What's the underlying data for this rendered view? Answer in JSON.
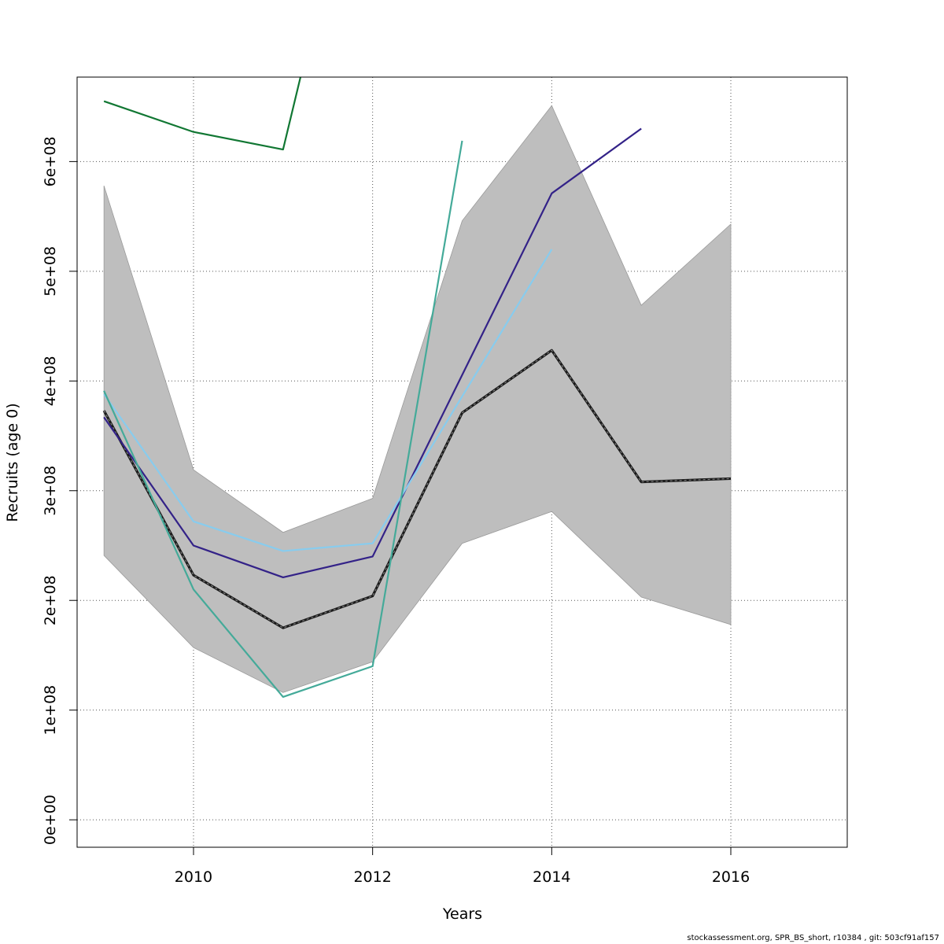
{
  "chart_data": {
    "type": "line",
    "title": "",
    "xlabel": "Years",
    "ylabel": "Recruits (age 0)",
    "xlim": [
      2008.7,
      2017.3
    ],
    "ylim": [
      -25000000,
      677000000
    ],
    "x_ticks": [
      2010,
      2012,
      2014,
      2016
    ],
    "x_tick_labels": [
      "2010",
      "2012",
      "2014",
      "2016"
    ],
    "y_ticks": [
      0,
      100000000,
      200000000,
      300000000,
      400000000,
      500000000,
      600000000
    ],
    "y_tick_labels": [
      "0e+00",
      "1e+08",
      "2e+08",
      "3e+08",
      "4e+08",
      "5e+08",
      "6e+08"
    ],
    "grid": true,
    "confidence_band": {
      "x": [
        2009,
        2010,
        2011,
        2012,
        2013,
        2014,
        2015,
        2016
      ],
      "lower": [
        241000000,
        157000000,
        116000000,
        144000000,
        252000000,
        281000000,
        203000000,
        178000000
      ],
      "upper": [
        578000000,
        319000000,
        262000000,
        293000000,
        546000000,
        651000000,
        469000000,
        543000000
      ],
      "color": "#bebebe"
    },
    "series": [
      {
        "x": [
          2009,
          2010,
          2011,
          2012,
          2013,
          2014,
          2015,
          2016
        ],
        "values": [
          373000000,
          223000000,
          175000000,
          204000000,
          371000000,
          428000000,
          308000000,
          311000000
        ],
        "color": "#1a1a1a",
        "dashed": true
      },
      {
        "x": [
          2009,
          2010,
          2011,
          2012,
          2014,
          2015
        ],
        "values": [
          367000000,
          250000000,
          221000000,
          240000000,
          571000000,
          630000000
        ],
        "color": "#332288",
        "dashed": false
      },
      {
        "x": [
          2009,
          2010,
          2011,
          2012,
          2014
        ],
        "values": [
          388000000,
          272000000,
          245000000,
          252000000,
          520000000
        ],
        "color": "#88ccee",
        "dashed": false
      },
      {
        "x": [
          2009,
          2010,
          2011,
          2012,
          2013
        ],
        "values": [
          391000000,
          210000000,
          112000000,
          140000000,
          619000000
        ],
        "color": "#44aa99",
        "dashed": false
      },
      {
        "x": [
          2009,
          2010,
          2011,
          2012
        ],
        "values": [
          655000000,
          627000000,
          611000000,
          950000000
        ],
        "color": "#117733",
        "dashed": false
      }
    ]
  },
  "footer": "stockassessment.org, SPR_BS_short, r10384 , git: 503cf91af157"
}
